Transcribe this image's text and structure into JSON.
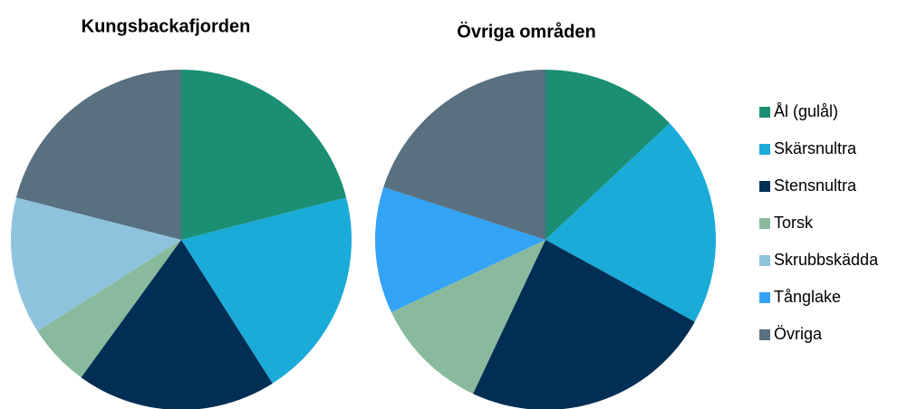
{
  "chart_data": [
    {
      "type": "pie",
      "title": "Kungsbackafjorden",
      "categories": [
        "Ål (gulål)",
        "Skärsnultra",
        "Stensnultra",
        "Torsk",
        "Skrubbskädda",
        "Tånglake",
        "Övriga"
      ],
      "values": [
        21,
        20,
        19,
        6,
        13,
        0,
        21
      ],
      "colors": [
        "#1a8f74",
        "#1aabd8",
        "#002e55",
        "#8aba9e",
        "#8ec3dd",
        "#33a3f5",
        "#587080"
      ]
    },
    {
      "type": "pie",
      "title": "Övriga områden",
      "categories": [
        "Ål (gulål)",
        "Skärsnultra",
        "Stensnultra",
        "Torsk",
        "Skrubbskädda",
        "Tånglake",
        "Övriga"
      ],
      "values": [
        13,
        20,
        24,
        11,
        0,
        12,
        20
      ],
      "colors": [
        "#1a8f74",
        "#1aabd8",
        "#002e55",
        "#8aba9e",
        "#8ec3dd",
        "#33a3f5",
        "#587080"
      ]
    }
  ]
}
